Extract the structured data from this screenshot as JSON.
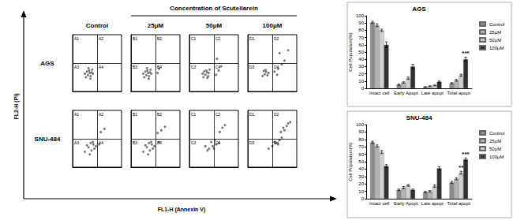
{
  "header": "Concentration of Scutellarein",
  "x_axis_label": "FL1-H (Annexin V)",
  "y_axis_label": "FL2-H (PI)",
  "flow": {
    "columns": [
      "Control",
      "25μM",
      "50μM",
      "100μM"
    ],
    "rows": [
      "AGS",
      "SNU-484"
    ],
    "panels": [
      [
        {
          "type": "scatter",
          "xlim": [
            1,
            10000
          ],
          "ylim": [
            1,
            10000
          ],
          "log": true,
          "tick_labels": false,
          "gate": {
            "x": 100,
            "y": 100
          },
          "quadrant_labels": [
            "A1",
            "A2",
            "A3",
            "A4"
          ],
          "color": "#555555",
          "x": [
            12,
            18,
            25,
            15,
            30,
            22,
            35,
            10,
            40,
            28,
            20,
            45
          ],
          "y": [
            10,
            14,
            20,
            25,
            12,
            30,
            22,
            18,
            35,
            8,
            45,
            18
          ]
        },
        {
          "type": "scatter",
          "xlim": [
            1,
            10000
          ],
          "ylim": [
            1,
            10000
          ],
          "log": true,
          "tick_labels": false,
          "gate": {
            "x": 100,
            "y": 100
          },
          "quadrant_labels": [
            "B1",
            "B2",
            "B3",
            "B4"
          ],
          "color": "#555555",
          "x": [
            12,
            18,
            25,
            15,
            30,
            22,
            35,
            10,
            40,
            28,
            20,
            45,
            150,
            200
          ],
          "y": [
            10,
            14,
            20,
            25,
            12,
            30,
            22,
            18,
            35,
            8,
            45,
            18,
            20,
            40
          ]
        },
        {
          "type": "scatter",
          "xlim": [
            1,
            10000
          ],
          "ylim": [
            1,
            10000
          ],
          "log": true,
          "tick_labels": false,
          "gate": {
            "x": 100,
            "y": 100
          },
          "quadrant_labels": [
            "C1",
            "C2",
            "C3",
            "C4"
          ],
          "color": "#555555",
          "x": [
            14,
            20,
            28,
            16,
            34,
            24,
            38,
            12,
            45,
            30,
            150,
            250,
            400,
            180
          ],
          "y": [
            10,
            15,
            22,
            26,
            12,
            30,
            20,
            18,
            35,
            9,
            15,
            30,
            60,
            200
          ]
        },
        {
          "type": "scatter",
          "xlim": [
            1,
            10000
          ],
          "ylim": [
            1,
            10000
          ],
          "log": true,
          "tick_labels": false,
          "gate": {
            "x": 100,
            "y": 100
          },
          "quadrant_labels": [
            "D1",
            "D2",
            "D3",
            "D4"
          ],
          "color": "#555555",
          "x": [
            16,
            24,
            32,
            20,
            40,
            28,
            50,
            150,
            300,
            600,
            1000,
            400,
            2000,
            250
          ],
          "y": [
            12,
            16,
            24,
            28,
            14,
            32,
            20,
            25,
            40,
            80,
            150,
            500,
            800,
            15
          ]
        }
      ],
      [
        {
          "type": "scatter",
          "xlim": [
            1,
            10000
          ],
          "ylim": [
            1,
            10000
          ],
          "log": true,
          "tick_labels": false,
          "gate": {
            "x": 100,
            "y": 100
          },
          "quadrant_labels": [
            "A1",
            "A2",
            "A3",
            "A4"
          ],
          "color": "#555555",
          "x": [
            10,
            20,
            35,
            50,
            15,
            60,
            30,
            80,
            25,
            45,
            200,
            400,
            150
          ],
          "y": [
            12,
            25,
            15,
            40,
            35,
            20,
            50,
            30,
            8,
            60,
            300,
            500,
            40
          ]
        },
        {
          "type": "scatter",
          "xlim": [
            1,
            10000
          ],
          "ylim": [
            1,
            10000
          ],
          "log": true,
          "tick_labels": false,
          "gate": {
            "x": 100,
            "y": 100
          },
          "quadrant_labels": [
            "B1",
            "B2",
            "B3",
            "B4"
          ],
          "color": "#555555",
          "x": [
            10,
            20,
            35,
            50,
            15,
            60,
            30,
            80,
            25,
            45,
            300,
            600,
            200,
            150
          ],
          "y": [
            12,
            25,
            15,
            40,
            35,
            20,
            50,
            30,
            8,
            60,
            400,
            700,
            60,
            250
          ]
        },
        {
          "type": "scatter",
          "xlim": [
            1,
            10000
          ],
          "ylim": [
            1,
            10000
          ],
          "log": true,
          "tick_labels": false,
          "gate": {
            "x": 100,
            "y": 100
          },
          "quadrant_labels": [
            "C1",
            "C2",
            "C3",
            "C4"
          ],
          "color": "#555555",
          "x": [
            40,
            80,
            150,
            60,
            100,
            30,
            250,
            500,
            800,
            300,
            20,
            120
          ],
          "y": [
            20,
            30,
            40,
            60,
            20,
            15,
            50,
            600,
            900,
            300,
            30,
            80
          ]
        },
        {
          "type": "scatter",
          "xlim": [
            1,
            10000
          ],
          "ylim": [
            1,
            10000
          ],
          "log": true,
          "tick_labels": false,
          "gate": {
            "x": 100,
            "y": 100
          },
          "quadrant_labels": [
            "D1",
            "D2",
            "D3",
            "D4"
          ],
          "color": "#555555",
          "x": [
            100,
            200,
            400,
            150,
            600,
            1000,
            1500,
            2000,
            800,
            300,
            50,
            3000,
            500
          ],
          "y": [
            30,
            50,
            80,
            60,
            120,
            400,
            800,
            1200,
            600,
            40,
            20,
            1500,
            300
          ]
        }
      ]
    ]
  },
  "chart_data": [
    {
      "type": "bar",
      "title": "AGS",
      "y_label": "Cell Population(%)",
      "categories": [
        "Intact cell",
        "Early Apopt",
        "Late apopt",
        "Total apopt"
      ],
      "series": [
        {
          "name": "Control",
          "color": "#8c8c8c",
          "values": [
            91,
            5,
            2,
            7
          ],
          "errors": [
            1.5,
            0.8,
            0.3,
            0.8
          ]
        },
        {
          "name": "25μM",
          "color": "#b3b3b3",
          "values": [
            87,
            8,
            3,
            11
          ],
          "errors": [
            2,
            1,
            0.4,
            1.2
          ]
        },
        {
          "name": "50μM",
          "color": "#d0d0d0",
          "values": [
            80,
            14,
            4,
            18
          ],
          "errors": [
            1.5,
            1.5,
            0.5,
            1.5
          ]
        },
        {
          "name": "100μM",
          "color": "#303030",
          "values": [
            60,
            30,
            9,
            40
          ],
          "errors": [
            4,
            3,
            1,
            3
          ]
        }
      ],
      "ylim": [
        0,
        100
      ],
      "yticks": [
        0,
        10,
        20,
        30,
        40,
        50,
        60,
        70,
        80,
        90,
        100
      ],
      "grid": false,
      "legend": "top-right",
      "annotations": [
        {
          "text": "***",
          "category": "Total apopt",
          "series": "100μM"
        }
      ]
    },
    {
      "type": "bar",
      "title": "SNU-484",
      "y_label": "Cell Population(%)",
      "categories": [
        "Intact cell",
        "Early Apopt",
        "Late apopt",
        "Total apopt"
      ],
      "series": [
        {
          "name": "Control",
          "color": "#8c8c8c",
          "values": [
            76,
            12,
            9,
            22
          ],
          "errors": [
            1.5,
            1,
            1,
            1.5
          ]
        },
        {
          "name": "25μM",
          "color": "#b3b3b3",
          "values": [
            71,
            15,
            10,
            27
          ],
          "errors": [
            1.5,
            1.5,
            1,
            1.5
          ]
        },
        {
          "name": "50μM",
          "color": "#d0d0d0",
          "values": [
            63,
            18,
            17,
            35
          ],
          "errors": [
            2,
            1,
            1.5,
            2
          ]
        },
        {
          "name": "100μM",
          "color": "#303030",
          "values": [
            44,
            12,
            41,
            53
          ],
          "errors": [
            2,
            1,
            2,
            2
          ]
        }
      ],
      "ylim": [
        0,
        100
      ],
      "yticks": [
        0,
        10,
        20,
        30,
        40,
        50,
        60,
        70,
        80,
        90,
        100
      ],
      "grid": false,
      "legend": "top-right",
      "annotations": [
        {
          "text": "**",
          "category": "Total apopt",
          "series": "50μM"
        },
        {
          "text": "***",
          "category": "Total apopt",
          "series": "100μM"
        }
      ]
    }
  ]
}
